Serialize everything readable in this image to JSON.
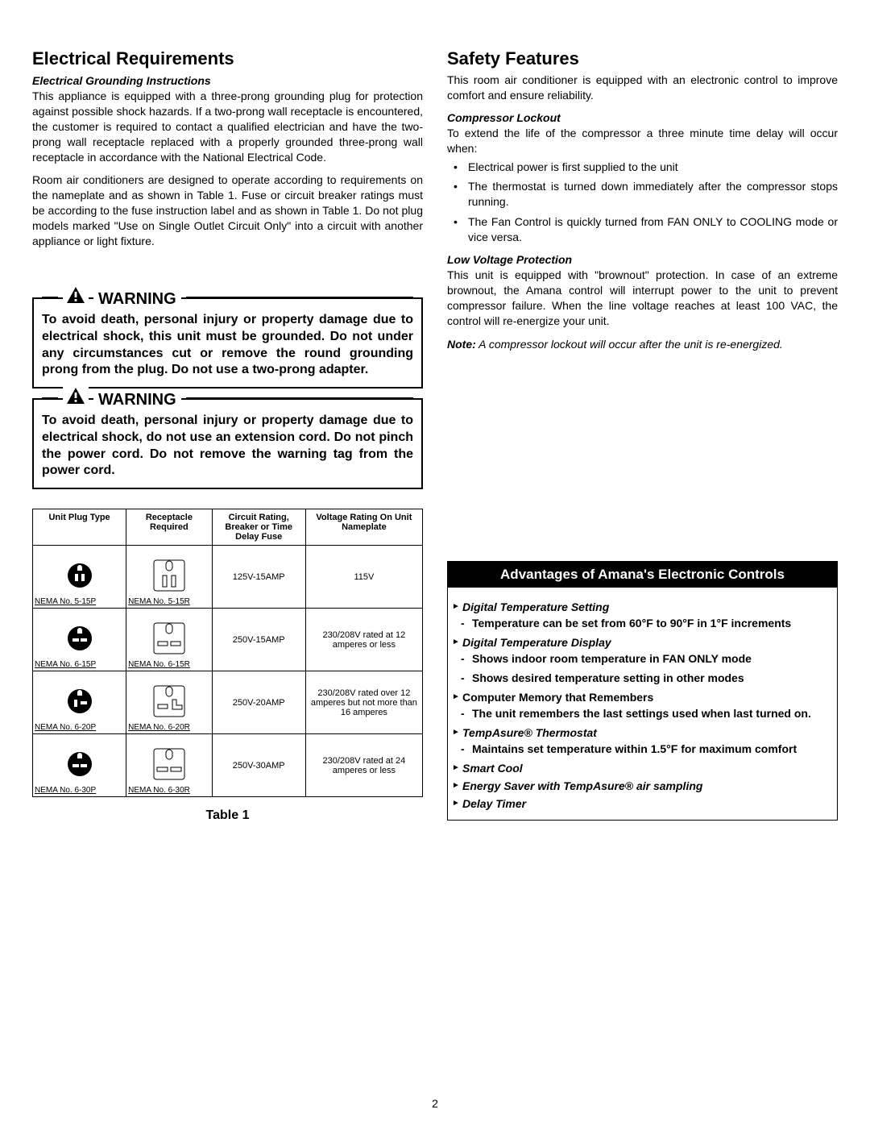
{
  "page_number": "2",
  "left": {
    "title": "Electrical Requirements",
    "grounding_heading": "Electrical Grounding Instructions",
    "p1": "This appliance is equipped with a three-prong grounding plug for protection against possible shock hazards. If a two-prong wall receptacle is encountered, the customer is required to contact a qualified electrician and have the two-prong wall receptacle replaced with a properly grounded three-prong wall receptacle in accordance with the National Electrical Code.",
    "p2": "Room air conditioners are designed to operate according to requirements on the nameplate and as shown in Table 1. Fuse or circuit breaker ratings must be according to the fuse instruction label and as shown in Table 1. Do not plug models marked \"Use on Single Outlet Circuit Only\" into a circuit with another appliance or light fixture.",
    "warning_label": "WARNING",
    "warning1": "To avoid death, personal injury or property damage due to electrical shock, this unit must be grounded. Do not under any circumstances cut or remove the round grounding prong from the plug. Do not use a two-prong adapter.",
    "warning2": "To avoid death, personal injury or property damage due to electrical shock, do not use an extension cord. Do not pinch the power cord. Do not remove the warning tag from the power cord.",
    "table": {
      "headers": [
        "Unit Plug Type",
        "Receptacle Required",
        "Circuit Rating, Breaker or Time Delay Fuse",
        "Voltage Rating On Unit Nameplate"
      ],
      "rows": [
        {
          "plug": "NEMA No. 5-15P",
          "recept": "NEMA No. 5-15R",
          "circuit": "125V-15AMP",
          "voltage": "115V"
        },
        {
          "plug": "NEMA No. 6-15P",
          "recept": "NEMA No. 6-15R",
          "circuit": "250V-15AMP",
          "voltage": "230/208V rated at 12 amperes or less"
        },
        {
          "plug": "NEMA No. 6-20P",
          "recept": "NEMA No. 6-20R",
          "circuit": "250V-20AMP",
          "voltage": "230/208V rated over 12 amperes but not more than 16 amperes"
        },
        {
          "plug": "NEMA No. 6-30P",
          "recept": "NEMA No. 6-30R",
          "circuit": "250V-30AMP",
          "voltage": "230/208V rated at 24 amperes or less"
        }
      ],
      "caption": "Table 1"
    }
  },
  "right": {
    "title": "Safety Features",
    "intro": "This room air conditioner is equipped with an electronic control to improve comfort and ensure reliability.",
    "comp_heading": "Compressor Lockout",
    "comp_intro": "To extend the life of the compressor a three minute time delay will occur when:",
    "comp_bullets": [
      "Electrical power is first supplied to the unit",
      "The thermostat is turned down immediately after the compressor stops running.",
      "The Fan Control is quickly turned from FAN ONLY to COOLING mode or vice versa."
    ],
    "lvp_heading": "Low Voltage Protection",
    "lvp_body": "This unit is equipped with \"brownout\" protection. In case of an extreme brownout, the Amana control will interrupt power to the unit to prevent compressor failure. When the line voltage reaches at least 100 VAC, the control will re-energize your unit.",
    "note_label": "Note:",
    "note_text": " A compressor lockout will occur after the unit is re-energized.",
    "adv_header": "Advantages of Amana's Electronic Controls",
    "adv": [
      {
        "topic": "Digital Temperature Setting",
        "italic": true,
        "points": [
          "Temperature can be set from 60°F to 90°F in 1°F increments"
        ]
      },
      {
        "topic": "Digital Temperature Display",
        "italic": true,
        "points": [
          "Shows indoor room temperature in FAN ONLY mode",
          "Shows desired temperature setting in other modes"
        ]
      },
      {
        "topic": "Computer Memory that Remembers",
        "italic": false,
        "points": [
          "The unit remembers the last settings used when last turned on."
        ]
      },
      {
        "topic": "TempAsure® Thermostat",
        "italic": true,
        "points": [
          "Maintains set temperature within 1.5°F for maximum comfort"
        ]
      },
      {
        "topic": "Smart Cool",
        "italic": true,
        "points": []
      },
      {
        "topic": "Energy Saver with TempAsure® air sampling",
        "italic": true,
        "points": []
      },
      {
        "topic": "Delay Timer",
        "italic": true,
        "points": []
      }
    ]
  }
}
